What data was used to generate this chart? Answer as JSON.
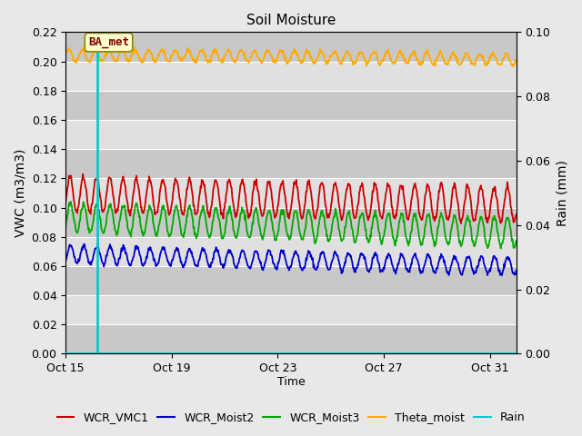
{
  "title": "Soil Moisture",
  "xlabel": "Time",
  "ylabel_left": "VWC (m3/m3)",
  "ylabel_right": "Rain (mm)",
  "ylim_left": [
    0.0,
    0.22
  ],
  "ylim_right": [
    0.0,
    0.1
  ],
  "x_ticks_labels": [
    "Oct 15",
    "Oct 19",
    "Oct 23",
    "Oct 27",
    "Oct 31"
  ],
  "x_ticks_pos": [
    0,
    4,
    8,
    12,
    16
  ],
  "annotation_label": "BA_met",
  "vline_x": 1.2,
  "colors": {
    "WCR_VMC1": "#cc0000",
    "WCR_Moist2": "#0000cc",
    "WCR_Moist3": "#00aa00",
    "Theta_moist": "#ffaa00",
    "Rain": "#00cccc"
  },
  "fig_bg_color": "#e8e8e8",
  "plot_bg_color": "#d8d8d8",
  "figsize": [
    6.4,
    4.8
  ],
  "dpi": 100,
  "yticks_left": [
    0.0,
    0.02,
    0.04,
    0.06,
    0.08,
    0.1,
    0.12,
    0.14,
    0.16,
    0.18,
    0.2,
    0.22
  ],
  "yticks_right": [
    0.0,
    0.02,
    0.04,
    0.06,
    0.08,
    0.1
  ],
  "n_days": 17,
  "seed": 42,
  "theta_base": 0.204,
  "theta_amp": 0.004,
  "theta_freq": 2.0,
  "theta_trend": -0.003,
  "vcm1_base": 0.109,
  "vcm1_amp": 0.012,
  "vcm1_freq": 2.0,
  "vcm1_trend": -0.007,
  "moist3_base": 0.093,
  "moist3_amp": 0.01,
  "moist3_freq": 2.0,
  "moist3_trend": -0.01,
  "moist2_base": 0.068,
  "moist2_amp": 0.006,
  "moist2_freq": 2.0,
  "moist2_trend": -0.008
}
